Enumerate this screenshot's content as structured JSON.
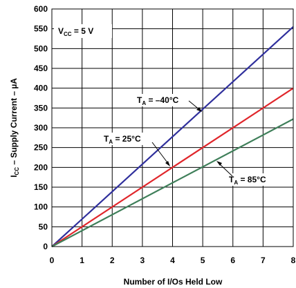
{
  "chart_data": {
    "type": "line",
    "xlabel": "Number of I/Os Held Low",
    "ylabel_parts": {
      "pre": "I",
      "sub": "CC",
      "post": " – Supply Current – µA"
    },
    "xlim": [
      0,
      8
    ],
    "ylim": [
      0,
      600
    ],
    "xticks": [
      0,
      1,
      2,
      3,
      4,
      5,
      6,
      7,
      8
    ],
    "yticks": [
      0,
      50,
      100,
      150,
      200,
      250,
      300,
      350,
      400,
      450,
      500,
      550,
      600
    ],
    "grid": true,
    "condition": {
      "pre": "V",
      "sub": "CC",
      "post": " = 5 V"
    },
    "series": [
      {
        "label_pre": "T",
        "label_sub": "A",
        "label_post": " = –40°C",
        "color": "#2f2f9c",
        "x": [
          0,
          8
        ],
        "y": [
          0,
          555
        ]
      },
      {
        "label_pre": "T",
        "label_sub": "A",
        "label_post": " = 25°C",
        "color": "#e0262b",
        "x": [
          0,
          8
        ],
        "y": [
          0,
          400
        ]
      },
      {
        "label_pre": "T",
        "label_sub": "A",
        "label_post": " = 85°C",
        "color": "#3f7f5a",
        "x": [
          0,
          8
        ],
        "y": [
          0,
          322
        ]
      }
    ]
  }
}
